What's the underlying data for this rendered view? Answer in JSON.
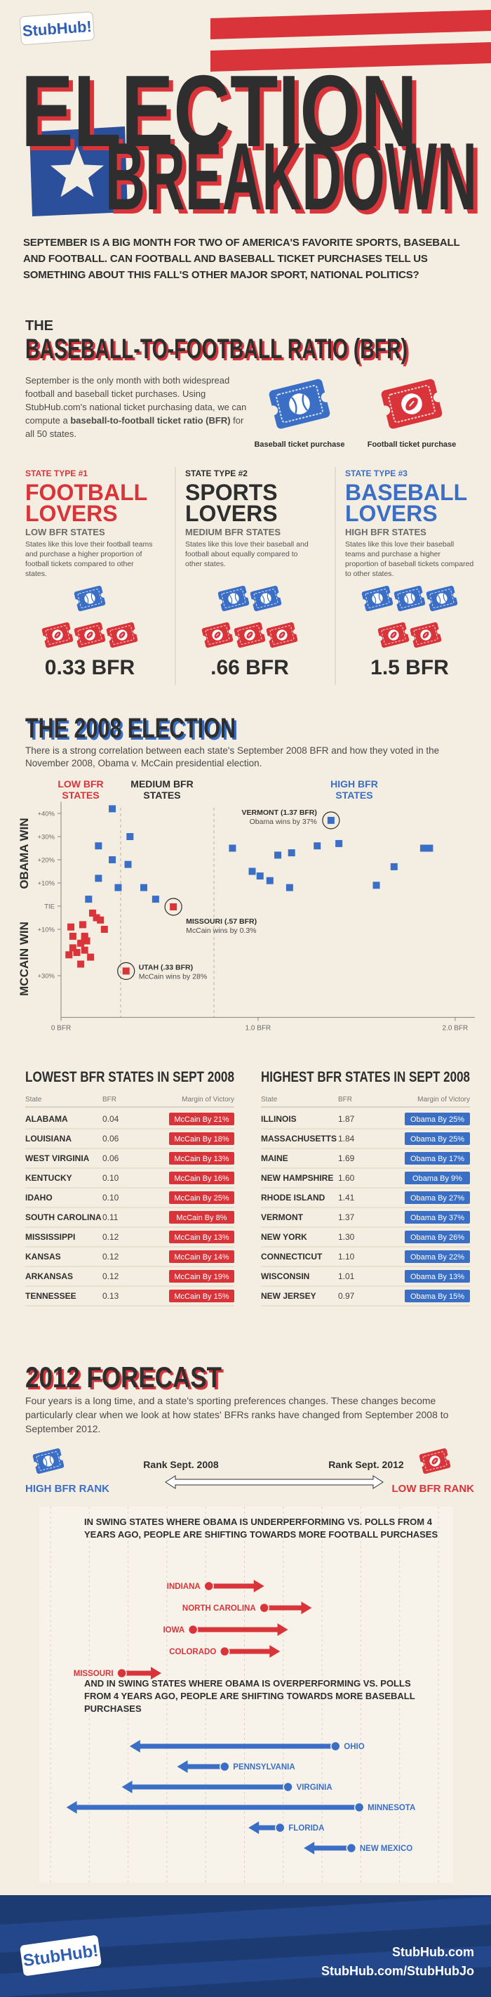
{
  "header": {
    "logo": "StubHub!",
    "title_line1": "ELECTION",
    "title_line2": "BREAKDOWN"
  },
  "intro": "SEPTEMBER IS A BIG MONTH FOR TWO OF AMERICA'S FAVORITE SPORTS, BASEBALL AND FOOTBALL. CAN FOOTBALL AND BASEBALL TICKET PURCHASES TELL US SOMETHING ABOUT THIS FALL'S OTHER MAJOR SPORT, NATIONAL POLITICS?",
  "bfr": {
    "kicker": "THE",
    "title": "BASEBALL-TO-FOOTBALL RATIO (BFR)",
    "text_before": "September is the only month with both widespread football and baseball ticket purchases. Using StubHub.com's national ticket purchasing data, we can compute a ",
    "text_bold": "baseball-to-football ticket ratio (BFR)",
    "text_after": " for all 50 states.",
    "baseball_icon_label": "Baseball ticket purchase",
    "football_icon_label": "Football ticket purchase"
  },
  "state_types": [
    {
      "kicker": "STATE TYPE #1",
      "name_line1": "FOOTBALL",
      "name_line2": "LOVERS",
      "subtitle": "LOW BFR STATES",
      "text": "States like this love their football teams and purchase a higher proportion of football tickets compared to other states.",
      "baseball_tickets": 1,
      "football_tickets": 3,
      "ratio": "0.33 BFR",
      "color": "#d8343a"
    },
    {
      "kicker": "STATE TYPE #2",
      "name_line1": "SPORTS",
      "name_line2": "LOVERS",
      "subtitle": "MEDIUM BFR STATES",
      "text": "States like this love their baseball and football about equally compared to other states.",
      "baseball_tickets": 2,
      "football_tickets": 3,
      "ratio": ".66 BFR",
      "color": "#2e2e2e"
    },
    {
      "kicker": "STATE TYPE #3",
      "name_line1": "BASEBALL",
      "name_line2": "LOVERS",
      "subtitle": "HIGH BFR STATES",
      "text": "States like this love their baseball teams and purchase a higher proportion of baseball tickets compared to other states.",
      "baseball_tickets": 3,
      "football_tickets": 2,
      "ratio": "1.5 BFR",
      "color": "#3b6fc6"
    }
  ],
  "election": {
    "title": "THE 2008 ELECTION",
    "text": "There is a strong correlation between each state's September 2008 BFR and how they voted in the November 2008, Obama v. McCain presidential election."
  },
  "chart_data": [
    {
      "type": "scatter",
      "regions": [
        {
          "label": "LOW BFR STATES",
          "color": "#d8343a"
        },
        {
          "label": "MEDIUM BFR STATES",
          "color": "#2e2e2e"
        },
        {
          "label": "HIGH BFR STATES",
          "color": "#3b6fc6"
        }
      ],
      "ylabel_top": "OBAMA WIN",
      "ylabel_bottom": "MCCAIN WIN",
      "xlim": [
        0,
        2.1
      ],
      "xticks": [
        {
          "value": 0,
          "label": "0 BFR"
        },
        {
          "value": 1,
          "label": "1.0 BFR"
        },
        {
          "value": 2,
          "label": "2.0 BFR"
        }
      ],
      "ylim": [
        -48,
        45
      ],
      "yticks": [
        {
          "value": 40,
          "label": "+40%"
        },
        {
          "value": 30,
          "label": "+30%"
        },
        {
          "value": 20,
          "label": "+20%"
        },
        {
          "value": 10,
          "label": "+10%"
        },
        {
          "value": 0,
          "label": "TIE"
        },
        {
          "value": -10,
          "label": "+10%"
        },
        {
          "value": -30,
          "label": "+30%"
        }
      ],
      "series": [
        {
          "color": "#3b6fc6",
          "x": [
            0.26,
            0.35,
            0.19,
            0.26,
            0.19,
            0.29,
            0.34,
            0.42,
            0.48,
            0.14,
            0.87,
            1.87,
            1.84,
            1.69,
            1.6,
            1.41,
            1.37,
            1.3,
            1.1,
            1.01,
            0.97,
            1.17,
            1.06,
            1.16
          ],
          "values": [
            42,
            30,
            26,
            20,
            12,
            8,
            18,
            8,
            3,
            3,
            25,
            25,
            25,
            17,
            9,
            27,
            37,
            26,
            22,
            13,
            15,
            23,
            11,
            8
          ]
        },
        {
          "color": "#d8343a",
          "x": [
            0.04,
            0.06,
            0.06,
            0.1,
            0.1,
            0.11,
            0.12,
            0.12,
            0.12,
            0.13,
            0.33,
            0.57,
            0.18,
            0.22,
            0.08,
            0.15,
            0.05,
            0.16,
            0.2
          ],
          "values": [
            -21,
            -18,
            -13,
            -16,
            -25,
            -8,
            -13,
            -14,
            -19,
            -15,
            -28,
            -0.3,
            -5,
            -10,
            -20,
            -22,
            -9,
            -3,
            -6
          ]
        }
      ],
      "annotations": [
        {
          "title": "VERMONT (1.37 BFR)",
          "text": "Obama wins by 37%"
        },
        {
          "title": "MISSOURI (.57 BFR)",
          "text": "McCain wins by 0.3%"
        },
        {
          "title": "UTAH (.33 BFR)",
          "text": "McCain wins by 28%"
        }
      ]
    },
    {
      "type": "arrow",
      "xlim": [
        1,
        50
      ],
      "groups": [
        {
          "title": "IN SWING STATES WHERE OBAMA IS UNDERPERFORMING VS. POLLS FROM 4 YEARS AGO, PEOPLE ARE SHIFTING TOWARDS MORE FOOTBALL PURCHASES",
          "color": "#d8343a",
          "states": [
            "INDIANA",
            "NORTH CAROLINA",
            "IOWA",
            "COLORADO",
            "MISSOURI"
          ],
          "rank_2008": [
            21,
            28,
            19,
            23,
            10
          ],
          "rank_2012": [
            28,
            34,
            31,
            30,
            15
          ]
        },
        {
          "title": "AND IN SWING STATES WHERE OBAMA IS OVERPERFORMING VS. POLLS FROM 4 YEARS AGO, PEOPLE ARE SHIFTING TOWARDS MORE BASEBALL PURCHASES",
          "color": "#3b6fc6",
          "states": [
            "OHIO",
            "PENNSYLVANIA",
            "VIRGINIA",
            "MINNESOTA",
            "FLORIDA",
            "NEW MEXICO"
          ],
          "rank_2008": [
            37,
            23,
            31,
            40,
            30,
            39
          ],
          "rank_2012": [
            11,
            17,
            10,
            3,
            26,
            33
          ]
        }
      ]
    }
  ],
  "tables": [
    {
      "title": "LOWEST BFR STATES IN SEPT 2008",
      "color": "#d8343a",
      "columns": [
        "State",
        "BFR",
        "Margin of Victory"
      ],
      "rows": [
        [
          "ALABAMA",
          "0.04",
          "McCain By 21%"
        ],
        [
          "LOUISIANA",
          "0.06",
          "McCain By 18%"
        ],
        [
          "WEST VIRGINIA",
          "0.06",
          "McCain By 13%"
        ],
        [
          "KENTUCKY",
          "0.10",
          "McCain By 16%"
        ],
        [
          "IDAHO",
          "0.10",
          "McCain By 25%"
        ],
        [
          "SOUTH CAROLINA",
          "0.11",
          "McCain By 8%"
        ],
        [
          "MISSISSIPPI",
          "0.12",
          "McCain By 13%"
        ],
        [
          "KANSAS",
          "0.12",
          "McCain By 14%"
        ],
        [
          "ARKANSAS",
          "0.12",
          "McCain By 19%"
        ],
        [
          "TENNESSEE",
          "0.13",
          "McCain By 15%"
        ]
      ]
    },
    {
      "title": "HIGHEST BFR STATES IN SEPT 2008",
      "color": "#3b6fc6",
      "columns": [
        "State",
        "BFR",
        "Margin of Victory"
      ],
      "rows": [
        [
          "ILLINOIS",
          "1.87",
          "Obama By 25%"
        ],
        [
          "MASSACHUSETTS",
          "1.84",
          "Obama By 25%"
        ],
        [
          "MAINE",
          "1.69",
          "Obama By 17%"
        ],
        [
          "NEW HAMPSHIRE",
          "1.60",
          "Obama By 9%"
        ],
        [
          "RHODE ISLAND",
          "1.41",
          "Obama By 27%"
        ],
        [
          "VERMONT",
          "1.37",
          "Obama By 37%"
        ],
        [
          "NEW YORK",
          "1.30",
          "Obama By 26%"
        ],
        [
          "CONNECTICUT",
          "1.10",
          "Obama By 22%"
        ],
        [
          "WISCONSIN",
          "1.01",
          "Obama By 13%"
        ],
        [
          "NEW JERSEY",
          "0.97",
          "Obama By 15%"
        ]
      ]
    }
  ],
  "forecast": {
    "title": "2012 FORECAST",
    "text": "Four years is a long time, and a state's sporting preferences changes. These changes become particularly clear when we look at how states' BFRs ranks have changed from September 2008 to September 2012.",
    "high_label": "HIGH BFR RANK",
    "low_label": "LOW BFR RANK",
    "rank_2008_label": "Rank Sept. 2008",
    "rank_2012_label": "Rank Sept. 2012"
  },
  "footer": {
    "logo": "StubHub!",
    "url1": "StubHub.com",
    "url2": "StubHub.com/StubHubJo"
  }
}
